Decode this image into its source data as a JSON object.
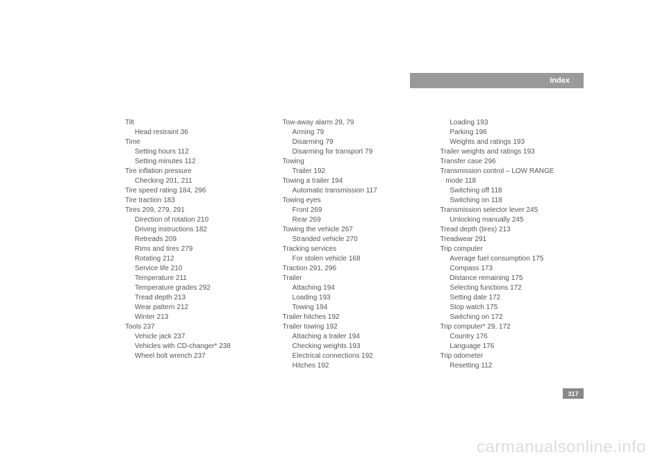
{
  "header": {
    "label": "Index"
  },
  "page_number": "317",
  "watermark": "carmanualsonline.info",
  "columns": [
    {
      "entries": [
        {
          "text": "Tilt",
          "sub": false
        },
        {
          "text": "Head restraint 36",
          "sub": true
        },
        {
          "text": "Time",
          "sub": false
        },
        {
          "text": "Setting hours 112",
          "sub": true
        },
        {
          "text": "Setting minutes 112",
          "sub": true
        },
        {
          "text": "Tire inflation pressure",
          "sub": false
        },
        {
          "text": "Checking 201, 211",
          "sub": true
        },
        {
          "text": "Tire speed rating 184, 296",
          "sub": false
        },
        {
          "text": "Tire traction 183",
          "sub": false
        },
        {
          "text": "Tires 209, 279, 291",
          "sub": false
        },
        {
          "text": "Direction of rotation 210",
          "sub": true
        },
        {
          "text": "Driving instructions 182",
          "sub": true
        },
        {
          "text": "Retreads 209",
          "sub": true
        },
        {
          "text": "Rims and tires 279",
          "sub": true
        },
        {
          "text": "Rotating 212",
          "sub": true
        },
        {
          "text": "Service life 210",
          "sub": true
        },
        {
          "text": "Temperature 211",
          "sub": true
        },
        {
          "text": "Temperature grades 292",
          "sub": true
        },
        {
          "text": "Tread depth 213",
          "sub": true
        },
        {
          "text": "Wear pattern 212",
          "sub": true
        },
        {
          "text": "Winter 213",
          "sub": true
        },
        {
          "text": "Tools 237",
          "sub": false
        },
        {
          "text": "Vehicle jack 237",
          "sub": true
        },
        {
          "text": "Vehicles with CD-changer* 238",
          "sub": true
        },
        {
          "text": "Wheel bolt wrench 237",
          "sub": true
        }
      ]
    },
    {
      "entries": [
        {
          "text": "Tow-away alarm 29, 79",
          "sub": false
        },
        {
          "text": "Arming 79",
          "sub": true
        },
        {
          "text": "Disarming 79",
          "sub": true
        },
        {
          "text": "Disarming for transport 79",
          "sub": true
        },
        {
          "text": "Towing",
          "sub": false
        },
        {
          "text": "Trailer 192",
          "sub": true
        },
        {
          "text": "Towing a trailer 194",
          "sub": false
        },
        {
          "text": "Automatic transmission 117",
          "sub": true
        },
        {
          "text": "Towing eyes",
          "sub": false
        },
        {
          "text": "Front 269",
          "sub": true
        },
        {
          "text": "Rear 269",
          "sub": true
        },
        {
          "text": "Towing the vehicle 267",
          "sub": false
        },
        {
          "text": "Stranded vehicle 270",
          "sub": true
        },
        {
          "text": "Tracking services",
          "sub": false
        },
        {
          "text": "For stolen vehicle 168",
          "sub": true
        },
        {
          "text": "Traction 291, 296",
          "sub": false
        },
        {
          "text": "Trailer",
          "sub": false
        },
        {
          "text": "Attaching 194",
          "sub": true
        },
        {
          "text": "Loading 193",
          "sub": true
        },
        {
          "text": "Towing 194",
          "sub": true
        },
        {
          "text": "Trailer hitches 192",
          "sub": false
        },
        {
          "text": "Trailer towing 192",
          "sub": false
        },
        {
          "text": "Attaching a trailer 194",
          "sub": true
        },
        {
          "text": "Checking weights 193",
          "sub": true
        },
        {
          "text": "Electrical connections 192",
          "sub": true
        },
        {
          "text": "Hitches 192",
          "sub": true
        }
      ]
    },
    {
      "entries": [
        {
          "text": "Loading 193",
          "sub": true
        },
        {
          "text": "Parking 196",
          "sub": true
        },
        {
          "text": "Weights and ratings 193",
          "sub": true
        },
        {
          "text": "Trailer weights and ratings 193",
          "sub": false
        },
        {
          "text": "Transfer case 296",
          "sub": false
        },
        {
          "text": "Transmission control – LOW RANGE",
          "sub": false
        },
        {
          "text": "mode 118",
          "sub": false,
          "indent": 1
        },
        {
          "text": "Switching off 118",
          "sub": true
        },
        {
          "text": "Switching on 118",
          "sub": true
        },
        {
          "text": "Transmission selector lever 245",
          "sub": false
        },
        {
          "text": "Unlocking manually 245",
          "sub": true
        },
        {
          "text": "Tread depth (tires) 213",
          "sub": false
        },
        {
          "text": "Treadwear 291",
          "sub": false
        },
        {
          "text": "Trip computer",
          "sub": false
        },
        {
          "text": "Average fuel consumption 175",
          "sub": true
        },
        {
          "text": "Compass 173",
          "sub": true
        },
        {
          "text": "Distance remaining 175",
          "sub": true
        },
        {
          "text": "Selecting functions 172",
          "sub": true
        },
        {
          "text": "Setting date 172",
          "sub": true
        },
        {
          "text": "Stop watch 175",
          "sub": true
        },
        {
          "text": "Switching on 172",
          "sub": true
        },
        {
          "text": "Trip computer* 29, 172",
          "sub": false
        },
        {
          "text": "Country 176",
          "sub": true
        },
        {
          "text": "Language 176",
          "sub": true
        },
        {
          "text": "Trip odometer",
          "sub": false
        },
        {
          "text": "Resetting 112",
          "sub": true
        }
      ]
    }
  ]
}
